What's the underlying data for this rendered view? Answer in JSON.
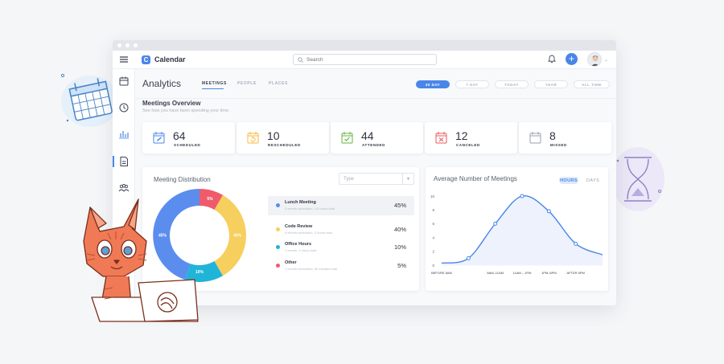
{
  "app": {
    "name": "Calendar",
    "logo_letter": "C"
  },
  "search": {
    "placeholder": "Search"
  },
  "page": {
    "title": "Analytics",
    "tabs": [
      {
        "label": "MEETINGS",
        "active": true
      },
      {
        "label": "PEOPLE",
        "active": false
      },
      {
        "label": "PLACES",
        "active": false
      }
    ],
    "ranges": [
      {
        "label": "30 DAY",
        "active": true
      },
      {
        "label": "7 DAY",
        "active": false
      },
      {
        "label": "TODAY",
        "active": false
      },
      {
        "label": "YEAR",
        "active": false
      },
      {
        "label": "ALL TIME",
        "active": false
      }
    ]
  },
  "overview": {
    "title": "Meetings Overview",
    "subtitle": "See how you have been spending your time.",
    "stats": [
      {
        "value": "64",
        "label": "SCHEDULED",
        "icon": "edit-calendar-icon",
        "color": "#4a86e8"
      },
      {
        "value": "10",
        "label": "RESCHEDULED",
        "icon": "reschedule-calendar-icon",
        "color": "#f6b93b"
      },
      {
        "value": "44",
        "label": "ATTENDED",
        "icon": "check-calendar-icon",
        "color": "#67b33e"
      },
      {
        "value": "12",
        "label": "CANCELED",
        "icon": "x-calendar-icon",
        "color": "#e85a5a"
      },
      {
        "value": "8",
        "label": "MISSED",
        "icon": "blank-calendar-icon",
        "color": "#9aa1ad"
      }
    ]
  },
  "distribution": {
    "title": "Meeting Distribution",
    "select_placeholder": "Type",
    "items": [
      {
        "name": "Lunch Meeting",
        "sub": "3 events scheduled, 4.5 hours total",
        "pct": "45%",
        "color": "#5b8def"
      },
      {
        "name": "Code Review",
        "sub": "5 events scheduled, 2 hours total",
        "pct": "40%",
        "color": "#f6cf5e"
      },
      {
        "name": "Office Hours",
        "sub": "1 events, 1 hours total",
        "pct": "10%",
        "color": "#20b4d8"
      },
      {
        "name": "Other",
        "sub": "1 events scheduled, 30 minutes total",
        "pct": "5%",
        "color": "#ef5b6b"
      }
    ],
    "donut_labels": [
      "45%",
      "40%",
      "10%",
      "5%"
    ]
  },
  "average": {
    "title": "Average Number of Meetings",
    "toggle_on": "HOURS",
    "toggle_off": "DAYS"
  },
  "chart_data": {
    "type": "line",
    "title": "Average Number of Meetings",
    "x": [
      "BEFORE 8AM",
      "8AM–11AM",
      "11AM – 1PM",
      "1PM–5PM",
      "AFTER 5PM"
    ],
    "y_ticks": [
      0,
      2,
      4,
      6,
      8,
      10
    ],
    "ylim": [
      0,
      10
    ],
    "points": [
      {
        "x": "BEFORE 8AM",
        "y": 0.3
      },
      {
        "x": "",
        "y": 1.0
      },
      {
        "x": "8AM–11AM",
        "y": 6.0
      },
      {
        "x": "11AM – 1PM",
        "y": 10.0
      },
      {
        "x": "1PM–5PM",
        "y": 7.8
      },
      {
        "x": "AFTER 5PM",
        "y": 3.1
      },
      {
        "x": "",
        "y": 1.5
      }
    ],
    "grid": false,
    "color": "#4a86e8"
  }
}
